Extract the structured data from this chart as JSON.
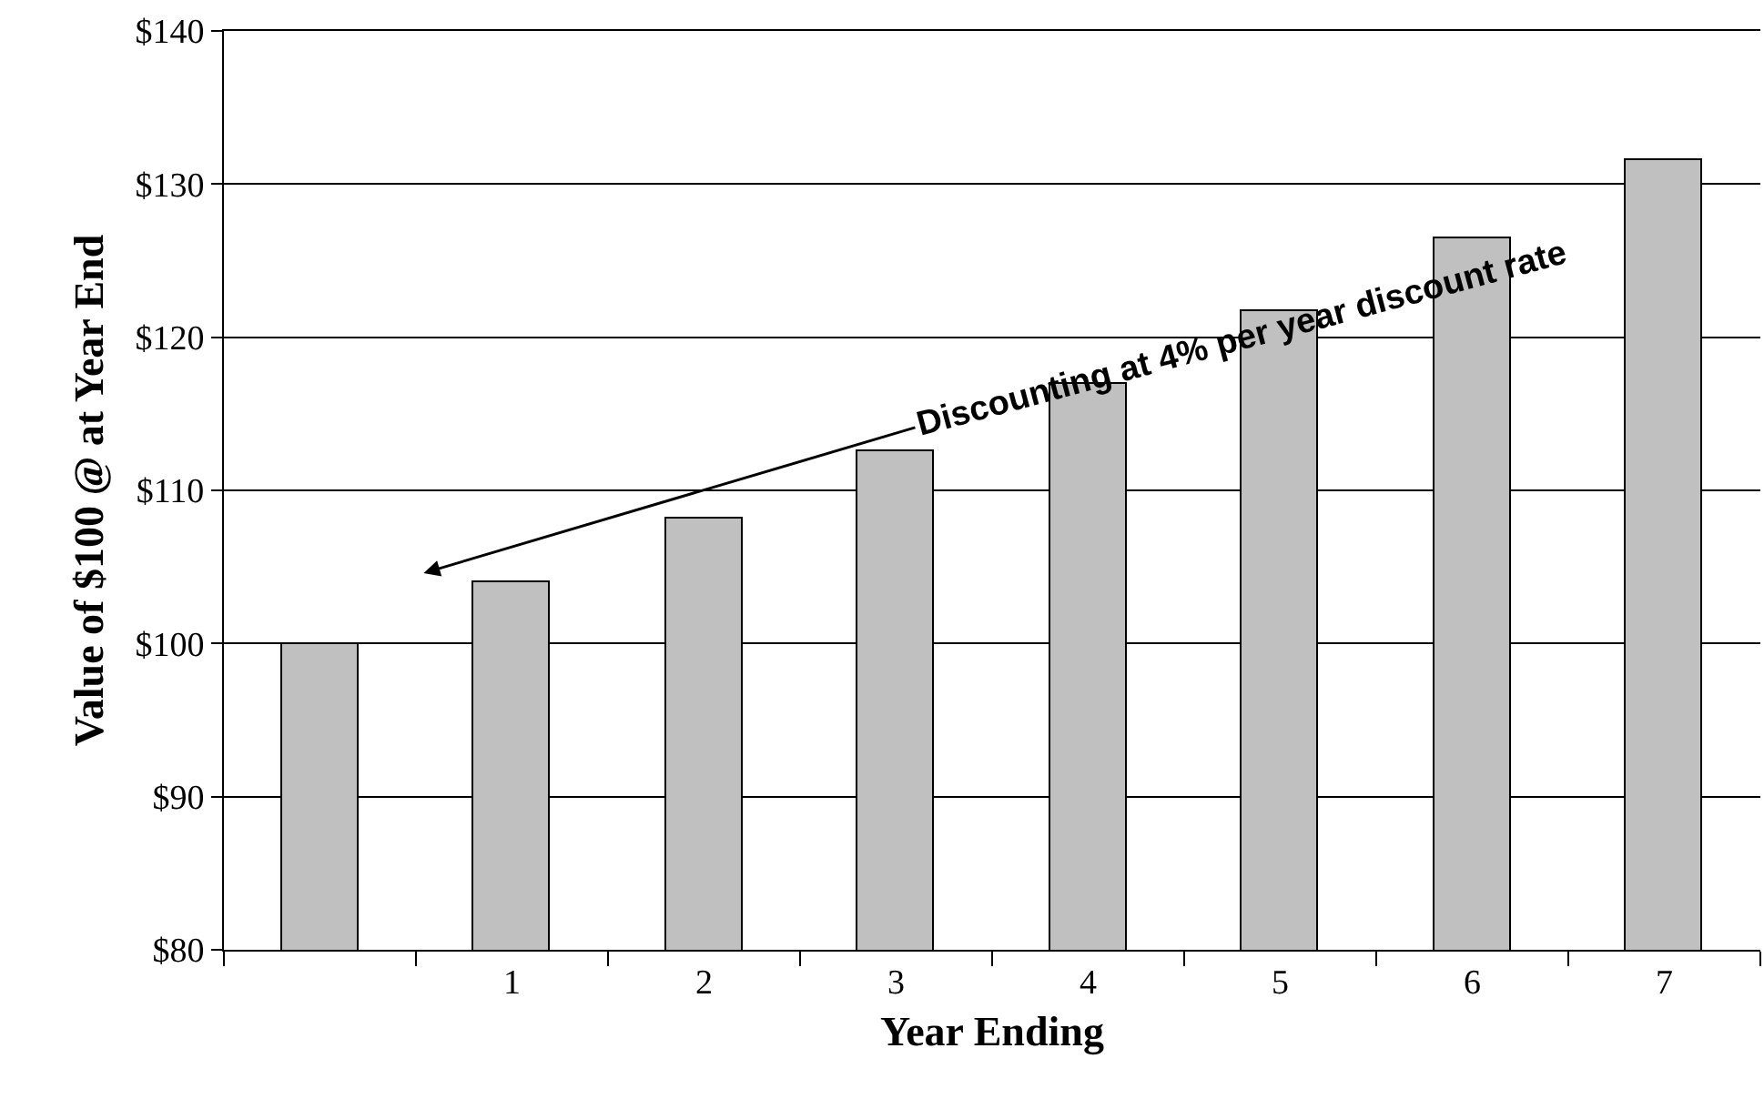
{
  "chart_data": {
    "type": "bar",
    "xlabel": "Year Ending",
    "ylabel": "Value of $100 @ at Year End",
    "categories": [
      null,
      "1",
      "2",
      "3",
      "4",
      "5",
      "6",
      "7"
    ],
    "values": [
      100,
      104,
      108.2,
      112.5,
      117,
      121.7,
      126.5,
      131.6
    ],
    "color": "#c0c0c0",
    "ylim": [
      80,
      140
    ],
    "yticks": [
      {
        "value": 80,
        "label": "$80"
      },
      {
        "value": 90,
        "label": "$90"
      },
      {
        "value": 100,
        "label": "$100"
      },
      {
        "value": 110,
        "label": "$110"
      },
      {
        "value": 120,
        "label": "$120"
      },
      {
        "value": 130,
        "label": "$130"
      },
      {
        "value": 140,
        "label": "$140"
      }
    ],
    "grid": "y",
    "annotations": [
      "Discounting at 4% per year discount rate"
    ]
  }
}
